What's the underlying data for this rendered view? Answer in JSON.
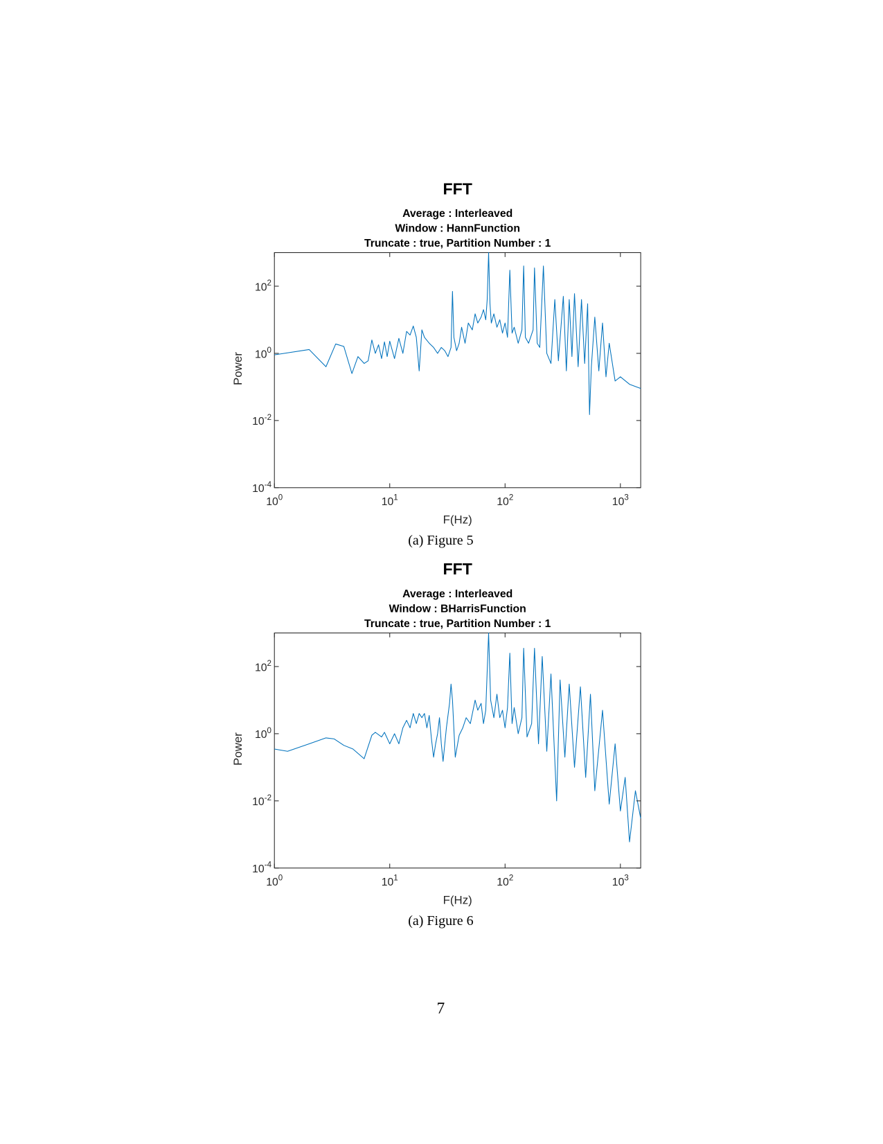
{
  "chart_data": [
    {
      "type": "line",
      "title": "FFT",
      "subtitle": [
        "Average : Interleaved",
        "Window : HannFunction",
        "Truncate : true,  Partition Number : 1"
      ],
      "x_label": "F(Hz)",
      "y_label": "Power",
      "caption": "(a) Figure 5",
      "color": "#0072bd",
      "xscale": "log",
      "yscale": "log",
      "xlim": [
        1,
        1500
      ],
      "ylim": [
        0.0001,
        1000
      ],
      "xticks": [
        {
          "value": 1,
          "label": "10^0"
        },
        {
          "value": 10,
          "label": "10^1"
        },
        {
          "value": 100,
          "label": "10^2"
        },
        {
          "value": 1000,
          "label": "10^3"
        }
      ],
      "yticks": [
        {
          "value": 0.0001,
          "label": "10^-4"
        },
        {
          "value": 0.01,
          "label": "10^-2"
        },
        {
          "value": 1,
          "label": "10^0"
        },
        {
          "value": 100,
          "label": "10^2"
        }
      ],
      "x": [
        1,
        2,
        2.8,
        3.4,
        4,
        4.7,
        5.3,
        6,
        6.5,
        7,
        7.5,
        8,
        8.5,
        9,
        9.5,
        10,
        11,
        12,
        13,
        14,
        15,
        16,
        17,
        18,
        19,
        20,
        22,
        24,
        26,
        28,
        30,
        32,
        34,
        35,
        36,
        38,
        40,
        42,
        45,
        48,
        52,
        55,
        58,
        62,
        65,
        68,
        70,
        72,
        74,
        76,
        80,
        85,
        90,
        95,
        100,
        105,
        110,
        115,
        120,
        130,
        140,
        145,
        150,
        160,
        175,
        180,
        190,
        200,
        215,
        230,
        250,
        270,
        290,
        320,
        340,
        360,
        380,
        400,
        430,
        460,
        490,
        520,
        540,
        560,
        600,
        650,
        700,
        750,
        800,
        900,
        1000,
        1200,
        1500
      ],
      "values": [
        0.9,
        1.3,
        0.4,
        1.9,
        1.6,
        0.25,
        0.8,
        0.5,
        0.6,
        2.5,
        1.0,
        1.8,
        0.7,
        2.2,
        0.8,
        2.3,
        0.7,
        2.8,
        1.0,
        4.5,
        3.5,
        6.5,
        3,
        0.3,
        5,
        3,
        2,
        1.5,
        1,
        1.5,
        1.2,
        0.8,
        1.5,
        70,
        3,
        1.2,
        2,
        6,
        2,
        8,
        5,
        15,
        8,
        12,
        20,
        10,
        40,
        1000,
        30,
        8,
        15,
        6,
        10,
        4,
        8,
        3,
        300,
        4,
        6,
        2,
        5,
        400,
        3,
        2,
        5,
        350,
        2,
        1.5,
        400,
        1,
        0.5,
        40,
        0.6,
        50,
        0.3,
        40,
        0.8,
        60,
        0.4,
        40,
        0.5,
        30,
        0.015,
        0.4,
        12,
        0.3,
        8,
        0.2,
        2,
        0.15,
        0.2,
        0.12,
        0.09
      ]
    },
    {
      "type": "line",
      "title": "FFT",
      "subtitle": [
        "Average : Interleaved",
        "Window : BHarrisFunction",
        "Truncate : true,  Partition Number : 1"
      ],
      "x_label": "F(Hz)",
      "y_label": "Power",
      "caption": "(a) Figure 6",
      "color": "#0072bd",
      "xscale": "log",
      "yscale": "log",
      "xlim": [
        1,
        1500
      ],
      "ylim": [
        0.0001,
        1000
      ],
      "xticks": [
        {
          "value": 1,
          "label": "10^0"
        },
        {
          "value": 10,
          "label": "10^1"
        },
        {
          "value": 100,
          "label": "10^2"
        },
        {
          "value": 1000,
          "label": "10^3"
        }
      ],
      "yticks": [
        {
          "value": 0.0001,
          "label": "10^-4"
        },
        {
          "value": 0.01,
          "label": "10^-2"
        },
        {
          "value": 1,
          "label": "10^0"
        },
        {
          "value": 100,
          "label": "10^2"
        }
      ],
      "x": [
        1,
        1.3,
        2,
        2.8,
        3.3,
        4,
        4.8,
        6,
        7,
        7.5,
        8.5,
        9,
        10,
        11,
        12,
        13,
        14,
        15,
        16,
        17,
        18,
        19,
        20,
        21,
        22,
        23,
        24,
        25,
        26,
        27,
        28,
        29,
        31,
        33,
        34,
        35,
        37,
        40,
        43,
        46,
        50,
        55,
        58,
        62,
        65,
        68,
        72,
        75,
        80,
        85,
        90,
        95,
        100,
        105,
        110,
        115,
        120,
        130,
        140,
        145,
        155,
        170,
        180,
        195,
        210,
        230,
        250,
        280,
        300,
        330,
        360,
        400,
        450,
        500,
        550,
        600,
        700,
        800,
        900,
        1000,
        1100,
        1200,
        1350,
        1500
      ],
      "values": [
        0.35,
        0.3,
        0.5,
        0.75,
        0.7,
        0.45,
        0.35,
        0.18,
        0.9,
        1.1,
        0.8,
        1.1,
        0.5,
        1.0,
        0.5,
        1.5,
        2.5,
        1.5,
        4,
        2,
        4,
        3,
        4,
        1.5,
        3.5,
        0.7,
        0.2,
        0.5,
        1,
        3,
        0.5,
        0.15,
        1.5,
        8,
        30,
        10,
        0.2,
        0.9,
        1.5,
        3,
        2,
        10,
        5,
        8,
        2,
        5,
        1000,
        10,
        3,
        15,
        3,
        5,
        1.5,
        6,
        250,
        2,
        6,
        1,
        3,
        350,
        0.8,
        2,
        350,
        0.5,
        200,
        0.3,
        60,
        0.01,
        40,
        0.2,
        30,
        0.1,
        25,
        0.05,
        15,
        0.02,
        5,
        0.008,
        0.5,
        0.005,
        0.05,
        0.0006,
        0.02,
        0.003
      ]
    }
  ],
  "page_number": "7"
}
